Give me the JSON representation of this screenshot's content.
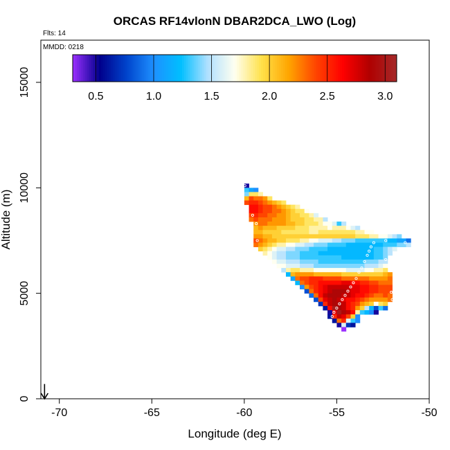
{
  "chart_data": {
    "type": "heatmap",
    "title": "ORCAS RF14vlonN DBAR2DCA_LWO (Log)",
    "flights_label": "Flts: 14",
    "mmdd_label": "MMDD: 0218",
    "xlabel": "Longitude (deg E)",
    "ylabel": "Altitude (m)",
    "xlim": [
      -71,
      -50
    ],
    "ylim": [
      0,
      17000
    ],
    "x_ticks": [
      -70,
      -65,
      -60,
      -55,
      -50
    ],
    "y_ticks": [
      0,
      5000,
      10000,
      15000
    ],
    "x_tick_labels": [
      "-70",
      "-65",
      "-60",
      "-55",
      "-50"
    ],
    "y_tick_labels": [
      "0",
      "5000",
      "10000",
      "15000"
    ],
    "colorbar": {
      "range": [
        0.3,
        3.1
      ],
      "ticks": [
        0.5,
        1.0,
        1.5,
        2.0,
        2.5,
        3.0
      ],
      "tick_labels": [
        "0.5",
        "1.0",
        "1.5",
        "2.0",
        "2.5",
        "3.0"
      ],
      "colors": [
        "#9b30ff",
        "#00008b",
        "#0044cc",
        "#1e90ff",
        "#00bfff",
        "#b0e0ff",
        "#fffff0",
        "#ffe14a",
        "#ffa500",
        "#ff4500",
        "#ff0000",
        "#b00000",
        "#a52a2a"
      ]
    },
    "cell_size": {
      "lon": 0.25,
      "alt": 200
    },
    "rows": [
      {
        "alt": 10100,
        "lon0": -60.0,
        "values": [
          0.5
        ]
      },
      {
        "alt": 9900,
        "lon0": -60.0,
        "values": [
          1.3,
          1.1,
          1.0
        ]
      },
      {
        "alt": 9700,
        "lon0": -60.0,
        "values": [
          1.4,
          1.9,
          1.9,
          1.8
        ]
      },
      {
        "alt": 9500,
        "lon0": -60.0,
        "values": [
          2.1,
          2.4,
          2.3,
          2.3,
          2.2,
          1.9
        ]
      },
      {
        "alt": 9300,
        "lon0": -60.0,
        "values": [
          2.4,
          2.5,
          2.5,
          2.4,
          2.3,
          2.2,
          2.1,
          2.0,
          1.9
        ]
      },
      {
        "alt": 9100,
        "lon0": -59.75,
        "values": [
          2.6,
          2.6,
          2.5,
          2.4,
          2.4,
          2.3,
          2.2,
          2.1,
          2.0,
          1.9,
          1.8
        ]
      },
      {
        "alt": 8900,
        "lon0": -59.75,
        "values": [
          2.6,
          2.6,
          2.5,
          2.4,
          2.4,
          2.3,
          2.3,
          2.2,
          2.1,
          2.0,
          1.9,
          1.9,
          1.7
        ]
      },
      {
        "alt": 8700,
        "lon0": -59.75,
        "values": [
          2.4,
          2.5,
          2.4,
          2.4,
          2.3,
          2.3,
          2.2,
          2.2,
          2.1,
          2.0,
          2.0,
          1.9,
          1.9,
          1.8,
          1.6
        ]
      },
      {
        "alt": 8500,
        "lon0": -59.75,
        "values": [
          2.3,
          2.4,
          2.3,
          2.3,
          2.3,
          2.2,
          2.2,
          2.2,
          2.1,
          2.0,
          2.0,
          2.0,
          1.9,
          1.9,
          1.8,
          1.8,
          1.5
        ]
      },
      {
        "alt": 8300,
        "lon0": -59.5,
        "values": [
          2.2,
          2.3,
          2.3,
          2.2,
          2.2,
          2.2,
          2.2,
          2.1,
          2.1,
          2.0,
          2.0,
          1.9,
          1.9,
          1.9,
          1.8,
          1.7,
          1.7,
          1.6,
          1.3,
          1.5
        ]
      },
      {
        "alt": 8100,
        "lon0": -59.5,
        "values": [
          2.1,
          2.2,
          2.1,
          2.1,
          2.1,
          2.0,
          2.0,
          2.0,
          2.0,
          1.9,
          1.9,
          1.9,
          1.8,
          1.8,
          1.8,
          1.8,
          1.7,
          1.8,
          1.8,
          1.8,
          1.7,
          1.6,
          1.5
        ]
      },
      {
        "alt": 7900,
        "lon0": -59.5,
        "values": [
          2.1,
          2.1,
          2.0,
          2.0,
          2.0,
          2.0,
          1.9,
          1.9,
          1.9,
          1.9,
          1.9,
          1.9,
          1.8,
          1.8,
          1.9,
          1.9,
          1.9,
          1.9,
          1.9,
          1.9,
          1.9,
          1.9,
          1.8,
          1.8,
          1.7,
          1.7
        ]
      },
      {
        "alt": 7700,
        "lon0": -59.5,
        "values": [
          2.2,
          2.2,
          2.1,
          2.1,
          2.0,
          2.0,
          2.0,
          2.0,
          2.0,
          2.0,
          2.0,
          2.0,
          2.0,
          2.0,
          2.0,
          2.0,
          2.0,
          2.0,
          2.0,
          2.0,
          2.0,
          2.0,
          1.9,
          1.9,
          1.9,
          1.8,
          1.8,
          1.7,
          1.7,
          1.6,
          1.5,
          1.4
        ]
      },
      {
        "alt": 7500,
        "lon0": -59.5,
        "values": [
          2.4,
          2.3,
          2.2,
          2.1,
          2.1,
          2.0,
          2.0,
          1.9,
          1.9,
          1.9,
          1.8,
          1.8,
          1.7,
          1.7,
          1.6,
          1.6,
          1.6,
          1.5,
          1.5,
          1.4,
          1.4,
          1.4,
          1.3,
          1.3,
          1.3,
          1.3,
          1.3,
          1.3,
          1.3,
          1.2,
          1.2,
          1.1,
          1.1,
          0.9
        ]
      },
      {
        "alt": 7300,
        "lon0": -59.5,
        "values": [
          2.3,
          2.2,
          2.1,
          2.0,
          1.9,
          1.8,
          1.8,
          1.7,
          1.7,
          1.6,
          1.6,
          1.5,
          1.5,
          1.4,
          1.4,
          1.4,
          1.3,
          1.3,
          1.3,
          1.3,
          1.2,
          1.2,
          1.2,
          1.2,
          1.2,
          1.2,
          1.2,
          1.2,
          1.3,
          1.3,
          1.3,
          1.4,
          1.4,
          1.5
        ]
      },
      {
        "alt": 7100,
        "lon0": -59.25,
        "values": [
          2.0,
          1.9,
          1.8,
          1.7,
          1.6,
          1.6,
          1.5,
          1.5,
          1.4,
          1.4,
          1.4,
          1.3,
          1.3,
          1.3,
          1.3,
          1.2,
          1.2,
          1.2,
          1.2,
          1.2,
          1.2,
          1.2,
          1.2,
          1.2,
          1.2,
          1.3,
          1.3,
          1.4,
          1.5,
          1.6
        ]
      },
      {
        "alt": 6900,
        "lon0": -59.0,
        "values": [
          1.8,
          1.7,
          1.6,
          1.5,
          1.5,
          1.4,
          1.4,
          1.4,
          1.3,
          1.3,
          1.3,
          1.3,
          1.2,
          1.2,
          1.2,
          1.2,
          1.2,
          1.2,
          1.2,
          1.2,
          1.2,
          1.2,
          1.2,
          1.2,
          1.3,
          1.3,
          1.4,
          1.5
        ]
      },
      {
        "alt": 6700,
        "lon0": -58.75,
        "values": [
          1.7,
          1.6,
          1.5,
          1.5,
          1.4,
          1.4,
          1.4,
          1.3,
          1.3,
          1.3,
          1.3,
          1.3,
          1.3,
          1.3,
          1.3,
          1.3,
          1.2,
          1.2,
          1.2,
          1.2,
          1.2,
          1.2,
          1.2,
          1.3,
          1.3,
          1.4
        ]
      },
      {
        "alt": 6500,
        "lon0": -58.5,
        "values": [
          1.7,
          1.6,
          1.6,
          1.5,
          1.5,
          1.5,
          1.4,
          1.4,
          1.4,
          1.4,
          1.3,
          1.3,
          1.3,
          1.3,
          1.3,
          1.3,
          1.3,
          1.3,
          1.3,
          1.3,
          1.4,
          1.4,
          1.4,
          1.5,
          1.5
        ]
      },
      {
        "alt": 6300,
        "lon0": -58.25,
        "values": [
          1.7,
          1.7,
          1.6,
          1.6,
          1.6,
          1.5,
          1.5,
          1.5,
          1.4,
          1.4,
          1.4,
          1.4,
          1.4,
          1.4,
          1.4,
          1.4,
          1.4,
          1.4,
          1.4,
          1.5,
          1.5,
          1.5,
          1.6,
          1.7
        ]
      },
      {
        "alt": 6100,
        "lon0": -58.0,
        "values": [
          1.5,
          1.8,
          1.9,
          1.9,
          1.8,
          1.8,
          1.8,
          1.7,
          1.7,
          1.7,
          1.7,
          1.7,
          1.7,
          1.7,
          1.6,
          1.6,
          1.6,
          1.6,
          1.7,
          1.7,
          1.8,
          1.8,
          1.9
        ]
      },
      {
        "alt": 5900,
        "lon0": -57.75,
        "values": [
          1.2,
          2.1,
          2.2,
          2.2,
          2.2,
          2.2,
          2.1,
          2.1,
          2.1,
          2.1,
          2.1,
          2.1,
          2.0,
          2.0,
          2.0,
          2.0,
          2.0,
          2.0,
          2.0,
          2.0,
          2.0,
          2.1,
          2.2
        ]
      },
      {
        "alt": 5700,
        "lon0": -57.5,
        "values": [
          1.1,
          2.3,
          2.4,
          2.4,
          2.5,
          2.5,
          2.5,
          2.4,
          2.4,
          2.4,
          2.4,
          2.3,
          2.3,
          2.3,
          2.3,
          2.3,
          2.3,
          2.2,
          2.2,
          2.2,
          2.2,
          2.3
        ]
      },
      {
        "alt": 5500,
        "lon0": -57.25,
        "values": [
          1.2,
          2.3,
          2.4,
          2.5,
          2.5,
          2.6,
          2.6,
          2.6,
          2.6,
          2.6,
          2.7,
          2.7,
          2.6,
          2.6,
          2.5,
          2.5,
          2.4,
          2.4,
          2.3,
          2.3,
          2.3
        ]
      },
      {
        "alt": 5300,
        "lon0": -57.0,
        "values": [
          1.0,
          2.2,
          2.4,
          2.5,
          2.6,
          2.7,
          2.8,
          2.8,
          2.8,
          2.8,
          2.8,
          2.7,
          2.7,
          2.6,
          2.6,
          2.5,
          2.5,
          2.4,
          2.4,
          2.4
        ]
      },
      {
        "alt": 5100,
        "lon0": -56.75,
        "values": [
          0.8,
          2.3,
          2.5,
          2.6,
          2.7,
          2.8,
          2.9,
          2.9,
          2.9,
          2.8,
          2.7,
          2.7,
          2.6,
          2.6,
          2.5,
          2.5,
          2.4,
          2.4,
          2.4
        ]
      },
      {
        "alt": 4900,
        "lon0": -56.5,
        "values": [
          0.9,
          2.3,
          2.6,
          2.8,
          2.9,
          2.9,
          2.9,
          2.8,
          2.8,
          2.7,
          2.6,
          2.6,
          2.5,
          2.4,
          2.3,
          2.3,
          2.4,
          2.3
        ]
      },
      {
        "alt": 4700,
        "lon0": -56.25,
        "values": [
          0.8,
          2.4,
          2.7,
          2.8,
          2.9,
          2.8,
          2.7,
          2.6,
          2.6,
          2.5,
          2.4,
          2.3,
          2.2,
          2.2,
          2.2,
          2.2,
          2.3
        ]
      },
      {
        "alt": 4500,
        "lon0": -56.0,
        "values": [
          0.7,
          2.5,
          2.8,
          2.9,
          2.9,
          2.8,
          2.6,
          2.5,
          2.4,
          2.2,
          2.1,
          2.0,
          1.7,
          1.9,
          2.0
        ]
      },
      {
        "alt": 4300,
        "lon0": -55.75,
        "values": [
          0.6,
          2.6,
          3.0,
          2.9,
          2.8,
          2.6,
          2.5,
          2.2,
          2.0,
          1.5,
          1.2,
          0.8,
          1.3,
          0.9
        ]
      },
      {
        "alt": 4100,
        "lon0": -55.5,
        "values": [
          0.5,
          2.7,
          3.0,
          2.9,
          2.8,
          2.6,
          1.8,
          1.3,
          1.2,
          1.0,
          0.5
        ]
      },
      {
        "alt": 3900,
        "lon0": -55.5,
        "values": [
          0.6,
          2.5,
          2.8,
          2.7,
          2.4,
          2.0,
          1.0
        ]
      },
      {
        "alt": 3700,
        "lon0": -55.25,
        "values": [
          0.6,
          2.3,
          2.5,
          1.6,
          1.3,
          1.0
        ]
      },
      {
        "alt": 3500,
        "lon0": -55.0,
        "values": [
          0.5,
          1.6,
          0.7,
          0.6
        ]
      },
      {
        "alt": 3300,
        "lon0": -54.75,
        "values": [
          0.2
        ]
      }
    ],
    "flight_track": [
      {
        "lon": -59.97,
        "alt": 10100
      },
      {
        "lon": -59.55,
        "alt": 8700
      },
      {
        "lon": -59.35,
        "alt": 8300
      },
      {
        "lon": -59.3,
        "alt": 7500
      },
      {
        "lon": -52.35,
        "alt": 7500
      },
      {
        "lon": -53.0,
        "alt": 7400
      },
      {
        "lon": -53.15,
        "alt": 7200
      },
      {
        "lon": -53.25,
        "alt": 7000
      },
      {
        "lon": -53.35,
        "alt": 6800
      },
      {
        "lon": -53.5,
        "alt": 6500
      },
      {
        "lon": -53.65,
        "alt": 6200
      },
      {
        "lon": -53.8,
        "alt": 6000
      },
      {
        "lon": -53.95,
        "alt": 5700
      },
      {
        "lon": -54.1,
        "alt": 5500
      },
      {
        "lon": -54.25,
        "alt": 5300
      },
      {
        "lon": -54.4,
        "alt": 5100
      },
      {
        "lon": -54.55,
        "alt": 4900
      },
      {
        "lon": -54.7,
        "alt": 4700
      },
      {
        "lon": -54.85,
        "alt": 4500
      },
      {
        "lon": -55.0,
        "alt": 4300
      },
      {
        "lon": -55.15,
        "alt": 4100
      },
      {
        "lon": -55.25,
        "alt": 3900
      },
      {
        "lon": -55.35,
        "alt": 3700
      },
      {
        "lon": -51.9,
        "alt": 5400
      },
      {
        "lon": -52.05,
        "alt": 5050
      },
      {
        "lon": -52.0,
        "alt": 4700
      },
      {
        "lon": -51.85,
        "alt": 4150
      },
      {
        "lon": -51.3,
        "alt": 7400
      },
      {
        "lon": -52.35,
        "alt": 6600
      }
    ],
    "home_arrow": {
      "lon": -70.8,
      "alt_top": 700,
      "alt_bottom": 0
    }
  }
}
